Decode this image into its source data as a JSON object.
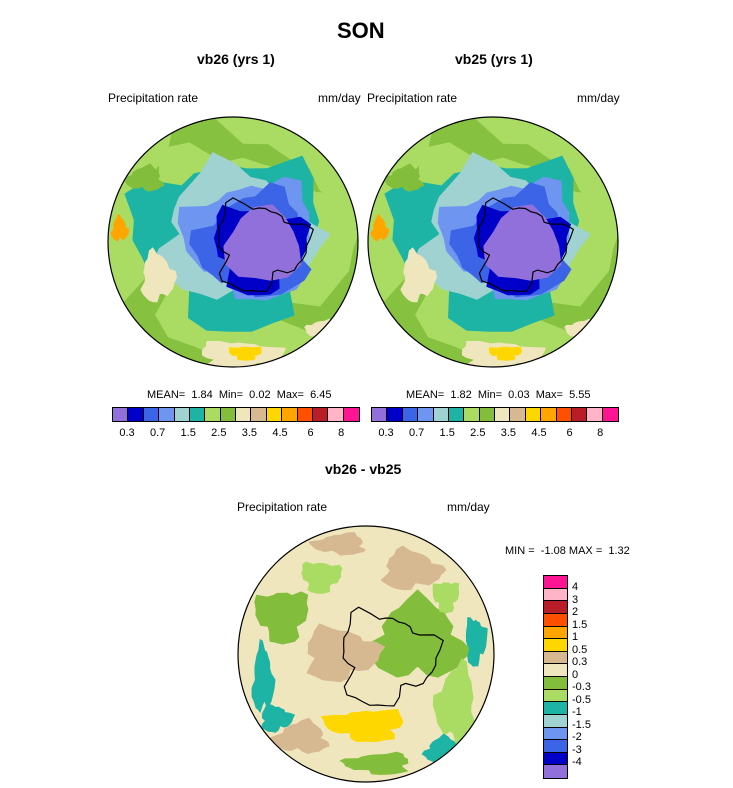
{
  "figure": {
    "title": "SON"
  },
  "colors": {
    "abs_levels": [
      "#9270dc",
      "#0000c8",
      "#3c64e6",
      "#6e96f0",
      "#a0d2d2",
      "#1eb4a5",
      "#aadc64",
      "#82be3c",
      "#f0e6be",
      "#d7b991",
      "#ffd700",
      "#ffa500",
      "#ff5000",
      "#b91e28",
      "#ffb4c8",
      "#ff1493"
    ],
    "diff_levels": [
      "#ff1493",
      "#ffb4c8",
      "#b91e28",
      "#ff5000",
      "#ffa500",
      "#ffd700",
      "#d7b991",
      "#f0e6be",
      "#82be3c",
      "#aadc64",
      "#1eb4a5",
      "#a0d2d2",
      "#6e96f0",
      "#3c64e6",
      "#0000c8",
      "#9270dc"
    ]
  },
  "panels": [
    {
      "title": "vb26 (yrs 1)",
      "left_label": "Precipitation rate",
      "right_label": "mm/day",
      "stats": {
        "mean_label": "MEAN=",
        "mean": "1.84",
        "min_label": "Min=",
        "min": "0.02",
        "max_label": "Max=",
        "max": "6.45"
      },
      "colorbar_ticks": [
        "0.3",
        "0.7",
        "1.5",
        "2.5",
        "3.5",
        "4.5",
        "6",
        "8"
      ]
    },
    {
      "title": "vb25 (yrs 1)",
      "left_label": "Precipitation rate",
      "right_label": "mm/day",
      "stats": {
        "mean_label": "MEAN=",
        "mean": "1.82",
        "min_label": "Min=",
        "min": "0.03",
        "max_label": "Max=",
        "max": "5.55"
      },
      "colorbar_ticks": [
        "0.3",
        "0.7",
        "1.5",
        "2.5",
        "3.5",
        "4.5",
        "6",
        "8"
      ]
    }
  ],
  "diff_panel": {
    "title": "vb26 - vb25",
    "left_label": "Precipitation rate",
    "right_label": "mm/day",
    "stats": {
      "min_label": "MIN =",
      "min": "-1.08",
      "max_label": "MAX =",
      "max": "1.32"
    },
    "colorbar_ticks": [
      "4",
      "3",
      "2",
      "1.5",
      "1",
      "0.5",
      "0.3",
      "0",
      "-0.3",
      "-0.5",
      "-1",
      "-1.5",
      "-2",
      "-3",
      "-4"
    ]
  },
  "chart_data": [
    {
      "type": "heatmap",
      "title": "vb26 (yrs 1)",
      "variable": "Precipitation rate",
      "units": "mm/day",
      "projection": "south polar stereographic",
      "levels": [
        0.3,
        0.5,
        0.7,
        1,
        1.5,
        2,
        2.5,
        3,
        3.5,
        4,
        4.5,
        5,
        6,
        7,
        8
      ],
      "stats": {
        "mean": 1.84,
        "min": 0.02,
        "max": 6.45
      }
    },
    {
      "type": "heatmap",
      "title": "vb25 (yrs 1)",
      "variable": "Precipitation rate",
      "units": "mm/day",
      "projection": "south polar stereographic",
      "levels": [
        0.3,
        0.5,
        0.7,
        1,
        1.5,
        2,
        2.5,
        3,
        3.5,
        4,
        4.5,
        5,
        6,
        7,
        8
      ],
      "stats": {
        "mean": 1.82,
        "min": 0.03,
        "max": 5.55
      }
    },
    {
      "type": "heatmap",
      "title": "vb26 - vb25",
      "variable": "Precipitation rate",
      "units": "mm/day",
      "projection": "south polar stereographic",
      "levels": [
        -4,
        -3,
        -2,
        -1.5,
        -1,
        -0.5,
        -0.3,
        0,
        0.3,
        0.5,
        1,
        1.5,
        2,
        3,
        4
      ],
      "stats": {
        "min": -1.08,
        "max": 1.32
      }
    }
  ]
}
